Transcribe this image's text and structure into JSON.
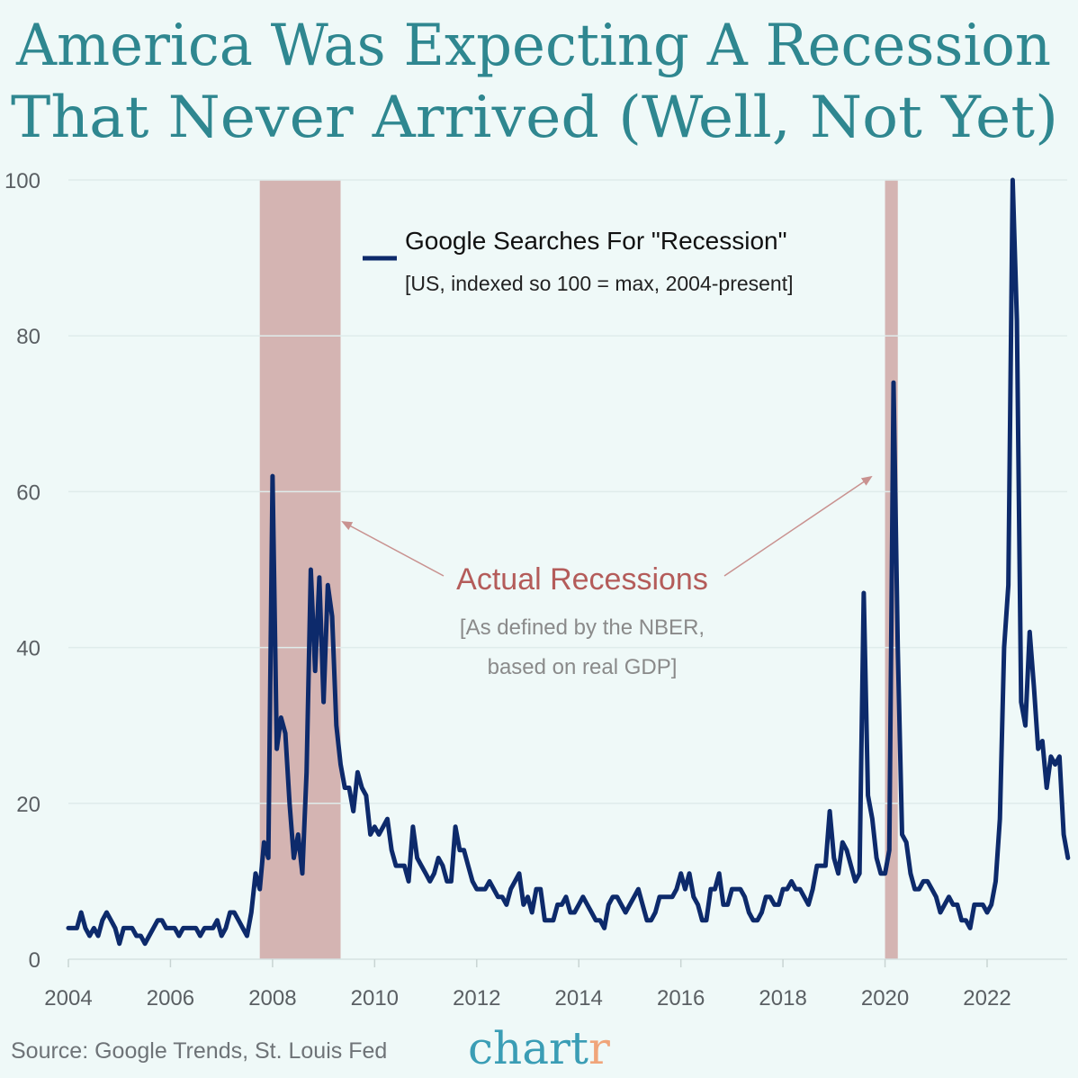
{
  "title": {
    "line1": "America Was Expecting A Recession",
    "line2": "That Never Arrived (Well, Not Yet)"
  },
  "source": "Source: Google Trends, St. Louis Fed",
  "logo": {
    "text_main": "chart",
    "text_accent": "r",
    "color_main": "#3a9db5",
    "color_accent": "#f0a57a"
  },
  "chart_data": {
    "type": "line",
    "title": "America Was Expecting A Recession That Never Arrived (Well, Not Yet)",
    "xlabel": "",
    "ylabel": "",
    "ylim": [
      0,
      100
    ],
    "xlim": [
      "2004-01",
      "2023-08"
    ],
    "yticks": [
      "0",
      "20",
      "40",
      "60",
      "80",
      "100"
    ],
    "xticks": [
      "2004",
      "2006",
      "2008",
      "2010",
      "2012",
      "2014",
      "2016",
      "2018",
      "2020",
      "2022"
    ],
    "grid": "horizontal",
    "legend": {
      "placement": "top-center",
      "title": "Google Searches For \"Recession\"",
      "subtitle": "[US, indexed so 100 = max, 2004-present]"
    },
    "colors": {
      "line": "#0d2a6b",
      "recession": "#d4b4b2",
      "annotation": "#b45c5a",
      "arrow": "#c99290"
    },
    "recessions": [
      {
        "start": "2007-10",
        "end": "2009-04"
      },
      {
        "start": "2020-01",
        "end": "2020-03"
      }
    ],
    "annotation": {
      "label": "Actual Recessions",
      "note_line1": "[As defined by the NBER,",
      "note_line2": "based on real GDP]"
    },
    "series": [
      {
        "name": "Google Searches For \"Recession\"",
        "x_start": "2004-01",
        "frequency": "monthly",
        "values": [
          4,
          4,
          4,
          6,
          4,
          3,
          4,
          3,
          5,
          6,
          5,
          4,
          2,
          4,
          4,
          4,
          3,
          3,
          2,
          3,
          4,
          5,
          5,
          4,
          4,
          4,
          3,
          4,
          4,
          4,
          4,
          3,
          4,
          4,
          4,
          5,
          3,
          4,
          6,
          6,
          5,
          4,
          3,
          6,
          11,
          9,
          15,
          13,
          62,
          27,
          31,
          29,
          20,
          13,
          16,
          11,
          24,
          50,
          37,
          49,
          33,
          48,
          44,
          30,
          25,
          22,
          22,
          19,
          24,
          22,
          21,
          16,
          17,
          16,
          17,
          18,
          14,
          12,
          12,
          12,
          10,
          17,
          13,
          12,
          11,
          10,
          11,
          13,
          12,
          10,
          10,
          17,
          14,
          14,
          12,
          10,
          9,
          9,
          9,
          10,
          9,
          8,
          8,
          7,
          9,
          10,
          11,
          7,
          8,
          6,
          9,
          9,
          5,
          5,
          5,
          7,
          7,
          8,
          6,
          6,
          7,
          8,
          7,
          6,
          5,
          5,
          4,
          7,
          8,
          8,
          7,
          6,
          7,
          8,
          9,
          7,
          5,
          5,
          6,
          8,
          8,
          8,
          8,
          9,
          11,
          9,
          11,
          8,
          7,
          5,
          5,
          9,
          9,
          11,
          7,
          7,
          9,
          9,
          9,
          8,
          6,
          5,
          5,
          6,
          8,
          8,
          7,
          7,
          9,
          9,
          10,
          9,
          9,
          8,
          7,
          9,
          12,
          12,
          12,
          19,
          13,
          11,
          15,
          14,
          12,
          10,
          11,
          47,
          21,
          18,
          13,
          11,
          11,
          14,
          74,
          40,
          16,
          15,
          11,
          9,
          9,
          10,
          10,
          9,
          8,
          6,
          7,
          8,
          7,
          7,
          5,
          5,
          4,
          7,
          7,
          7,
          6,
          7,
          10,
          18,
          40,
          48,
          100,
          82,
          33,
          30,
          42,
          35,
          27,
          28,
          22,
          26,
          25,
          26,
          16,
          13
        ]
      }
    ]
  }
}
